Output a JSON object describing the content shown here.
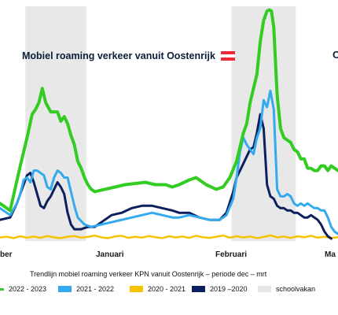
{
  "title": "Mobiel roaming verkeer vanuit Oostenrijk",
  "right_edge_text": "O",
  "subtitle": "Trendlijn mobiel roaming verkeer KPN vanuit Oostenrijk – periode dec – mrt",
  "flag_colors": [
    "#ed2939",
    "#ffffff",
    "#ed2939"
  ],
  "chart_data": {
    "type": "line",
    "x_range": [
      0,
      100
    ],
    "y_range": [
      0,
      100
    ],
    "grid": false,
    "legend_position": "bottom",
    "x_ticks": [
      {
        "x": 0,
        "label": "ber"
      },
      {
        "x": 33.7,
        "label": "Januari"
      },
      {
        "x": 68.4,
        "label": "Februari"
      },
      {
        "x": 99.4,
        "label": "Ma"
      }
    ],
    "shaded_periods": [
      [
        7.5,
        25.5
      ],
      [
        68.5,
        87.5
      ]
    ],
    "series": [
      {
        "name": "2022 - 2023",
        "color": "#33cc22",
        "values": [
          [
            0,
            16
          ],
          [
            3,
            13
          ],
          [
            6,
            32
          ],
          [
            8,
            44
          ],
          [
            9.5,
            54
          ],
          [
            10.5,
            56
          ],
          [
            11.5,
            59
          ],
          [
            12.5,
            65
          ],
          [
            13.5,
            59
          ],
          [
            15,
            55
          ],
          [
            17,
            55
          ],
          [
            18,
            51
          ],
          [
            19,
            53
          ],
          [
            20,
            50
          ],
          [
            21,
            45
          ],
          [
            22,
            41
          ],
          [
            23,
            34
          ],
          [
            24,
            31
          ],
          [
            25,
            27
          ],
          [
            26,
            24
          ],
          [
            27,
            22
          ],
          [
            28,
            21
          ],
          [
            31,
            22
          ],
          [
            34,
            23
          ],
          [
            37,
            24
          ],
          [
            40,
            24.5
          ],
          [
            43,
            25
          ],
          [
            46,
            24
          ],
          [
            49,
            24
          ],
          [
            51,
            23
          ],
          [
            53,
            24
          ],
          [
            56,
            26
          ],
          [
            58,
            27
          ],
          [
            61,
            24
          ],
          [
            64,
            22
          ],
          [
            66,
            23
          ],
          [
            68,
            27
          ],
          [
            70,
            34
          ],
          [
            71,
            40
          ],
          [
            72,
            46
          ],
          [
            73,
            50
          ],
          [
            74,
            59
          ],
          [
            75,
            65
          ],
          [
            76,
            71
          ],
          [
            77,
            85
          ],
          [
            78,
            94
          ],
          [
            79,
            98
          ],
          [
            79.7,
            98.5
          ],
          [
            80.3,
            98
          ],
          [
            81,
            91
          ],
          [
            82,
            62
          ],
          [
            83,
            48
          ],
          [
            84,
            44
          ],
          [
            85,
            43
          ],
          [
            86,
            42
          ],
          [
            87,
            39
          ],
          [
            88,
            38
          ],
          [
            89,
            35
          ],
          [
            90,
            35
          ],
          [
            91,
            31
          ],
          [
            92,
            31
          ],
          [
            93,
            30
          ],
          [
            94,
            30
          ],
          [
            95,
            32
          ],
          [
            96,
            32
          ],
          [
            97,
            30
          ],
          [
            98,
            32
          ],
          [
            99,
            31
          ],
          [
            100,
            30
          ]
        ]
      },
      {
        "name": "2021 - 2022",
        "color": "#33aaee",
        "values": [
          [
            0,
            14
          ],
          [
            3,
            11
          ],
          [
            5,
            16
          ],
          [
            6,
            20
          ],
          [
            7,
            26
          ],
          [
            8,
            27
          ],
          [
            9,
            25
          ],
          [
            10,
            30
          ],
          [
            11,
            30
          ],
          [
            12,
            29
          ],
          [
            13,
            28
          ],
          [
            14,
            23
          ],
          [
            15,
            22
          ],
          [
            16,
            27
          ],
          [
            17,
            30
          ],
          [
            18,
            29
          ],
          [
            19,
            27
          ],
          [
            20,
            27
          ],
          [
            21,
            21
          ],
          [
            22,
            15
          ],
          [
            23,
            10
          ],
          [
            25,
            7
          ],
          [
            27,
            6
          ],
          [
            30,
            7
          ],
          [
            33,
            8
          ],
          [
            36,
            9
          ],
          [
            39,
            10
          ],
          [
            42,
            11
          ],
          [
            45,
            12
          ],
          [
            48,
            11
          ],
          [
            51,
            10
          ],
          [
            53,
            10
          ],
          [
            56,
            11
          ],
          [
            59,
            10
          ],
          [
            62,
            9
          ],
          [
            65,
            9
          ],
          [
            67,
            11
          ],
          [
            69,
            18
          ],
          [
            70,
            27
          ],
          [
            71,
            38
          ],
          [
            72,
            44
          ],
          [
            73,
            41
          ],
          [
            74,
            39
          ],
          [
            75,
            37
          ],
          [
            76,
            44
          ],
          [
            77,
            48
          ],
          [
            78,
            60
          ],
          [
            79,
            57
          ],
          [
            80,
            64
          ],
          [
            81,
            56
          ],
          [
            82,
            22
          ],
          [
            83,
            19
          ],
          [
            84,
            19
          ],
          [
            85,
            20
          ],
          [
            86,
            19
          ],
          [
            87,
            16
          ],
          [
            88,
            15
          ],
          [
            89,
            16
          ],
          [
            90,
            15
          ],
          [
            91,
            16
          ],
          [
            92,
            15
          ],
          [
            93,
            14
          ],
          [
            94,
            14
          ],
          [
            95,
            13
          ],
          [
            96,
            13
          ],
          [
            97,
            10
          ],
          [
            98,
            6
          ],
          [
            99,
            4
          ],
          [
            100,
            3
          ]
        ]
      },
      {
        "name": "2020 - 2021",
        "color": "#f5c400",
        "values": [
          [
            0,
            1.5
          ],
          [
            2,
            1.8
          ],
          [
            4,
            1.2
          ],
          [
            6,
            2
          ],
          [
            8,
            1.4
          ],
          [
            10,
            1.9
          ],
          [
            12,
            1.3
          ],
          [
            14,
            2.1
          ],
          [
            16,
            1.5
          ],
          [
            18,
            1.2
          ],
          [
            20,
            1.8
          ],
          [
            22,
            2.1
          ],
          [
            24,
            1.4
          ],
          [
            26,
            1.7
          ],
          [
            28,
            2.3
          ],
          [
            30,
            1.5
          ],
          [
            32,
            1.2
          ],
          [
            34,
            1.9
          ],
          [
            36,
            2.2
          ],
          [
            38,
            1.3
          ],
          [
            40,
            1.8
          ],
          [
            42,
            1.4
          ],
          [
            44,
            2.1
          ],
          [
            46,
            1.6
          ],
          [
            48,
            1.2
          ],
          [
            50,
            2
          ],
          [
            52,
            1.5
          ],
          [
            54,
            1.9
          ],
          [
            56,
            1.3
          ],
          [
            58,
            2.2
          ],
          [
            60,
            1.6
          ],
          [
            62,
            1.3
          ],
          [
            64,
            1.8
          ],
          [
            66,
            2.3
          ],
          [
            68,
            1.4
          ],
          [
            70,
            2
          ],
          [
            72,
            1.5
          ],
          [
            74,
            1.9
          ],
          [
            76,
            1.2
          ],
          [
            78,
            1.7
          ],
          [
            80,
            2.4
          ],
          [
            82,
            1.5
          ],
          [
            84,
            1.9
          ],
          [
            86,
            1.3
          ],
          [
            88,
            2
          ],
          [
            90,
            1.6
          ],
          [
            92,
            2.2
          ],
          [
            94,
            1.4
          ],
          [
            96,
            1.8
          ],
          [
            98,
            1.3
          ],
          [
            100,
            1.6
          ]
        ]
      },
      {
        "name": "2019 –2020",
        "color": "#0d1f5c",
        "values": [
          [
            0,
            9
          ],
          [
            3,
            10
          ],
          [
            5,
            16
          ],
          [
            6,
            20
          ],
          [
            7,
            24
          ],
          [
            8,
            28
          ],
          [
            9,
            29
          ],
          [
            10,
            25
          ],
          [
            11,
            20
          ],
          [
            12,
            15
          ],
          [
            13,
            14
          ],
          [
            14,
            17
          ],
          [
            15,
            19
          ],
          [
            16,
            22
          ],
          [
            17,
            25
          ],
          [
            18,
            23
          ],
          [
            19,
            20
          ],
          [
            20,
            12
          ],
          [
            21,
            7
          ],
          [
            22,
            5
          ],
          [
            24,
            5
          ],
          [
            26,
            6
          ],
          [
            28,
            6
          ],
          [
            30,
            8
          ],
          [
            33,
            11
          ],
          [
            36,
            12
          ],
          [
            39,
            14
          ],
          [
            42,
            15
          ],
          [
            45,
            15
          ],
          [
            48,
            14
          ],
          [
            51,
            13
          ],
          [
            53,
            12
          ],
          [
            56,
            12
          ],
          [
            59,
            10
          ],
          [
            62,
            9
          ],
          [
            65,
            9
          ],
          [
            67,
            12
          ],
          [
            69,
            21
          ],
          [
            70,
            27
          ],
          [
            71,
            30
          ],
          [
            72,
            33
          ],
          [
            73,
            36
          ],
          [
            74,
            39
          ],
          [
            75,
            40
          ],
          [
            76,
            46
          ],
          [
            77,
            54
          ],
          [
            78,
            48
          ],
          [
            79,
            24
          ],
          [
            80,
            19
          ],
          [
            81,
            18
          ],
          [
            82,
            15
          ],
          [
            83,
            14
          ],
          [
            84,
            14
          ],
          [
            85,
            13
          ],
          [
            86,
            13
          ],
          [
            87,
            12
          ],
          [
            88,
            12
          ],
          [
            89,
            11
          ],
          [
            90,
            10
          ],
          [
            91,
            10
          ],
          [
            92,
            11
          ],
          [
            93,
            10
          ],
          [
            94,
            9
          ],
          [
            95,
            7
          ],
          [
            96,
            4
          ],
          [
            97,
            2
          ],
          [
            98,
            1
          ]
        ]
      }
    ],
    "legend": [
      {
        "label": "2022 - 2023",
        "color": "#33cc22",
        "marker": "line"
      },
      {
        "label": "2021 - 2022",
        "color": "#33aaee",
        "marker": "box"
      },
      {
        "label": "2020 - 2021",
        "color": "#f5c400",
        "marker": "box"
      },
      {
        "label": "2019 –2020",
        "color": "#0d1f5c",
        "marker": "box"
      },
      {
        "label": "schoolvakan",
        "color": "#e6e6e6",
        "marker": "box"
      }
    ]
  }
}
